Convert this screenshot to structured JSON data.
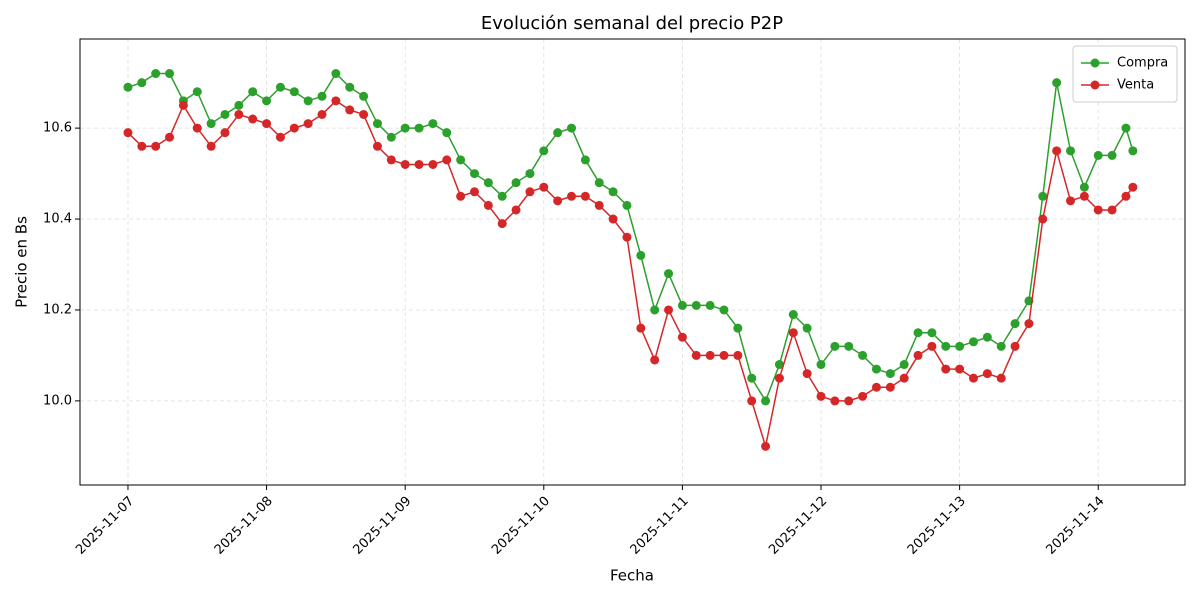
{
  "chart_data": {
    "type": "line",
    "title": "Evolución semanal del precio P2P",
    "xlabel": "Fecha",
    "ylabel": "Precio en Bs",
    "x": [
      0,
      0.1,
      0.2,
      0.3,
      0.4,
      0.5,
      0.6,
      0.7,
      0.8,
      0.9,
      1,
      1.1,
      1.2,
      1.3,
      1.4,
      1.5,
      1.6,
      1.7,
      1.8,
      1.9,
      2,
      2.1,
      2.2,
      2.3,
      2.4,
      2.5,
      2.6,
      2.7,
      2.8,
      2.9,
      3,
      3.1,
      3.2,
      3.3,
      3.4,
      3.5,
      3.6,
      3.7,
      3.8,
      3.9,
      4,
      4.1,
      4.2,
      4.3,
      4.4,
      4.5,
      4.6,
      4.7,
      4.8,
      4.9,
      5,
      5.1,
      5.2,
      5.3,
      5.4,
      5.5,
      5.6,
      5.7,
      5.8,
      5.9,
      6,
      6.1,
      6.2,
      6.3,
      6.4,
      6.5,
      6.6,
      6.7,
      6.8,
      6.9,
      7,
      7.1,
      7.2,
      7.25
    ],
    "series": [
      {
        "name": "Compra",
        "color": "#2ca02c",
        "values": [
          10.69,
          10.7,
          10.72,
          10.72,
          10.66,
          10.68,
          10.61,
          10.63,
          10.65,
          10.68,
          10.66,
          10.69,
          10.68,
          10.66,
          10.67,
          10.72,
          10.69,
          10.67,
          10.61,
          10.58,
          10.6,
          10.6,
          10.61,
          10.59,
          10.53,
          10.5,
          10.48,
          10.45,
          10.48,
          10.5,
          10.55,
          10.59,
          10.6,
          10.53,
          10.48,
          10.46,
          10.43,
          10.32,
          10.2,
          10.28,
          10.21,
          10.21,
          10.21,
          10.2,
          10.16,
          10.05,
          10.0,
          10.08,
          10.19,
          10.16,
          10.08,
          10.12,
          10.12,
          10.1,
          10.07,
          10.06,
          10.08,
          10.15,
          10.15,
          10.12,
          10.12,
          10.13,
          10.14,
          10.12,
          10.17,
          10.22,
          10.45,
          10.7,
          10.55,
          10.47,
          10.54,
          10.54,
          10.6,
          10.55
        ]
      },
      {
        "name": "Venta",
        "color": "#d62728",
        "values": [
          10.59,
          10.56,
          10.56,
          10.58,
          10.65,
          10.6,
          10.56,
          10.59,
          10.63,
          10.62,
          10.61,
          10.58,
          10.6,
          10.61,
          10.63,
          10.66,
          10.64,
          10.63,
          10.56,
          10.53,
          10.52,
          10.52,
          10.52,
          10.53,
          10.45,
          10.46,
          10.43,
          10.39,
          10.42,
          10.46,
          10.47,
          10.44,
          10.45,
          10.45,
          10.43,
          10.4,
          10.36,
          10.16,
          10.09,
          10.2,
          10.14,
          10.1,
          10.1,
          10.1,
          10.1,
          10.0,
          9.9,
          10.05,
          10.15,
          10.06,
          10.01,
          10.0,
          10.0,
          10.01,
          10.03,
          10.03,
          10.05,
          10.1,
          10.12,
          10.07,
          10.07,
          10.05,
          10.06,
          10.05,
          10.12,
          10.17,
          10.4,
          10.55,
          10.44,
          10.45,
          10.42,
          10.42,
          10.45,
          10.47
        ]
      }
    ],
    "xlim": [
      -0.346,
      7.626
    ],
    "xticks": [
      {
        "value": 0,
        "label": "2025-11-07"
      },
      {
        "value": 1,
        "label": "2025-11-08"
      },
      {
        "value": 2,
        "label": "2025-11-09"
      },
      {
        "value": 3,
        "label": "2025-11-10"
      },
      {
        "value": 4,
        "label": "2025-11-11"
      },
      {
        "value": 5,
        "label": "2025-11-12"
      },
      {
        "value": 6,
        "label": "2025-11-13"
      },
      {
        "value": 7,
        "label": "2025-11-14"
      }
    ],
    "ylim": [
      9.815,
      10.796
    ],
    "yticks": [
      {
        "value": 10.0,
        "label": "10.0"
      },
      {
        "value": 10.2,
        "label": "10.2"
      },
      {
        "value": 10.4,
        "label": "10.4"
      },
      {
        "value": 10.6,
        "label": "10.6"
      }
    ],
    "grid": true,
    "legend": "upper-right"
  }
}
